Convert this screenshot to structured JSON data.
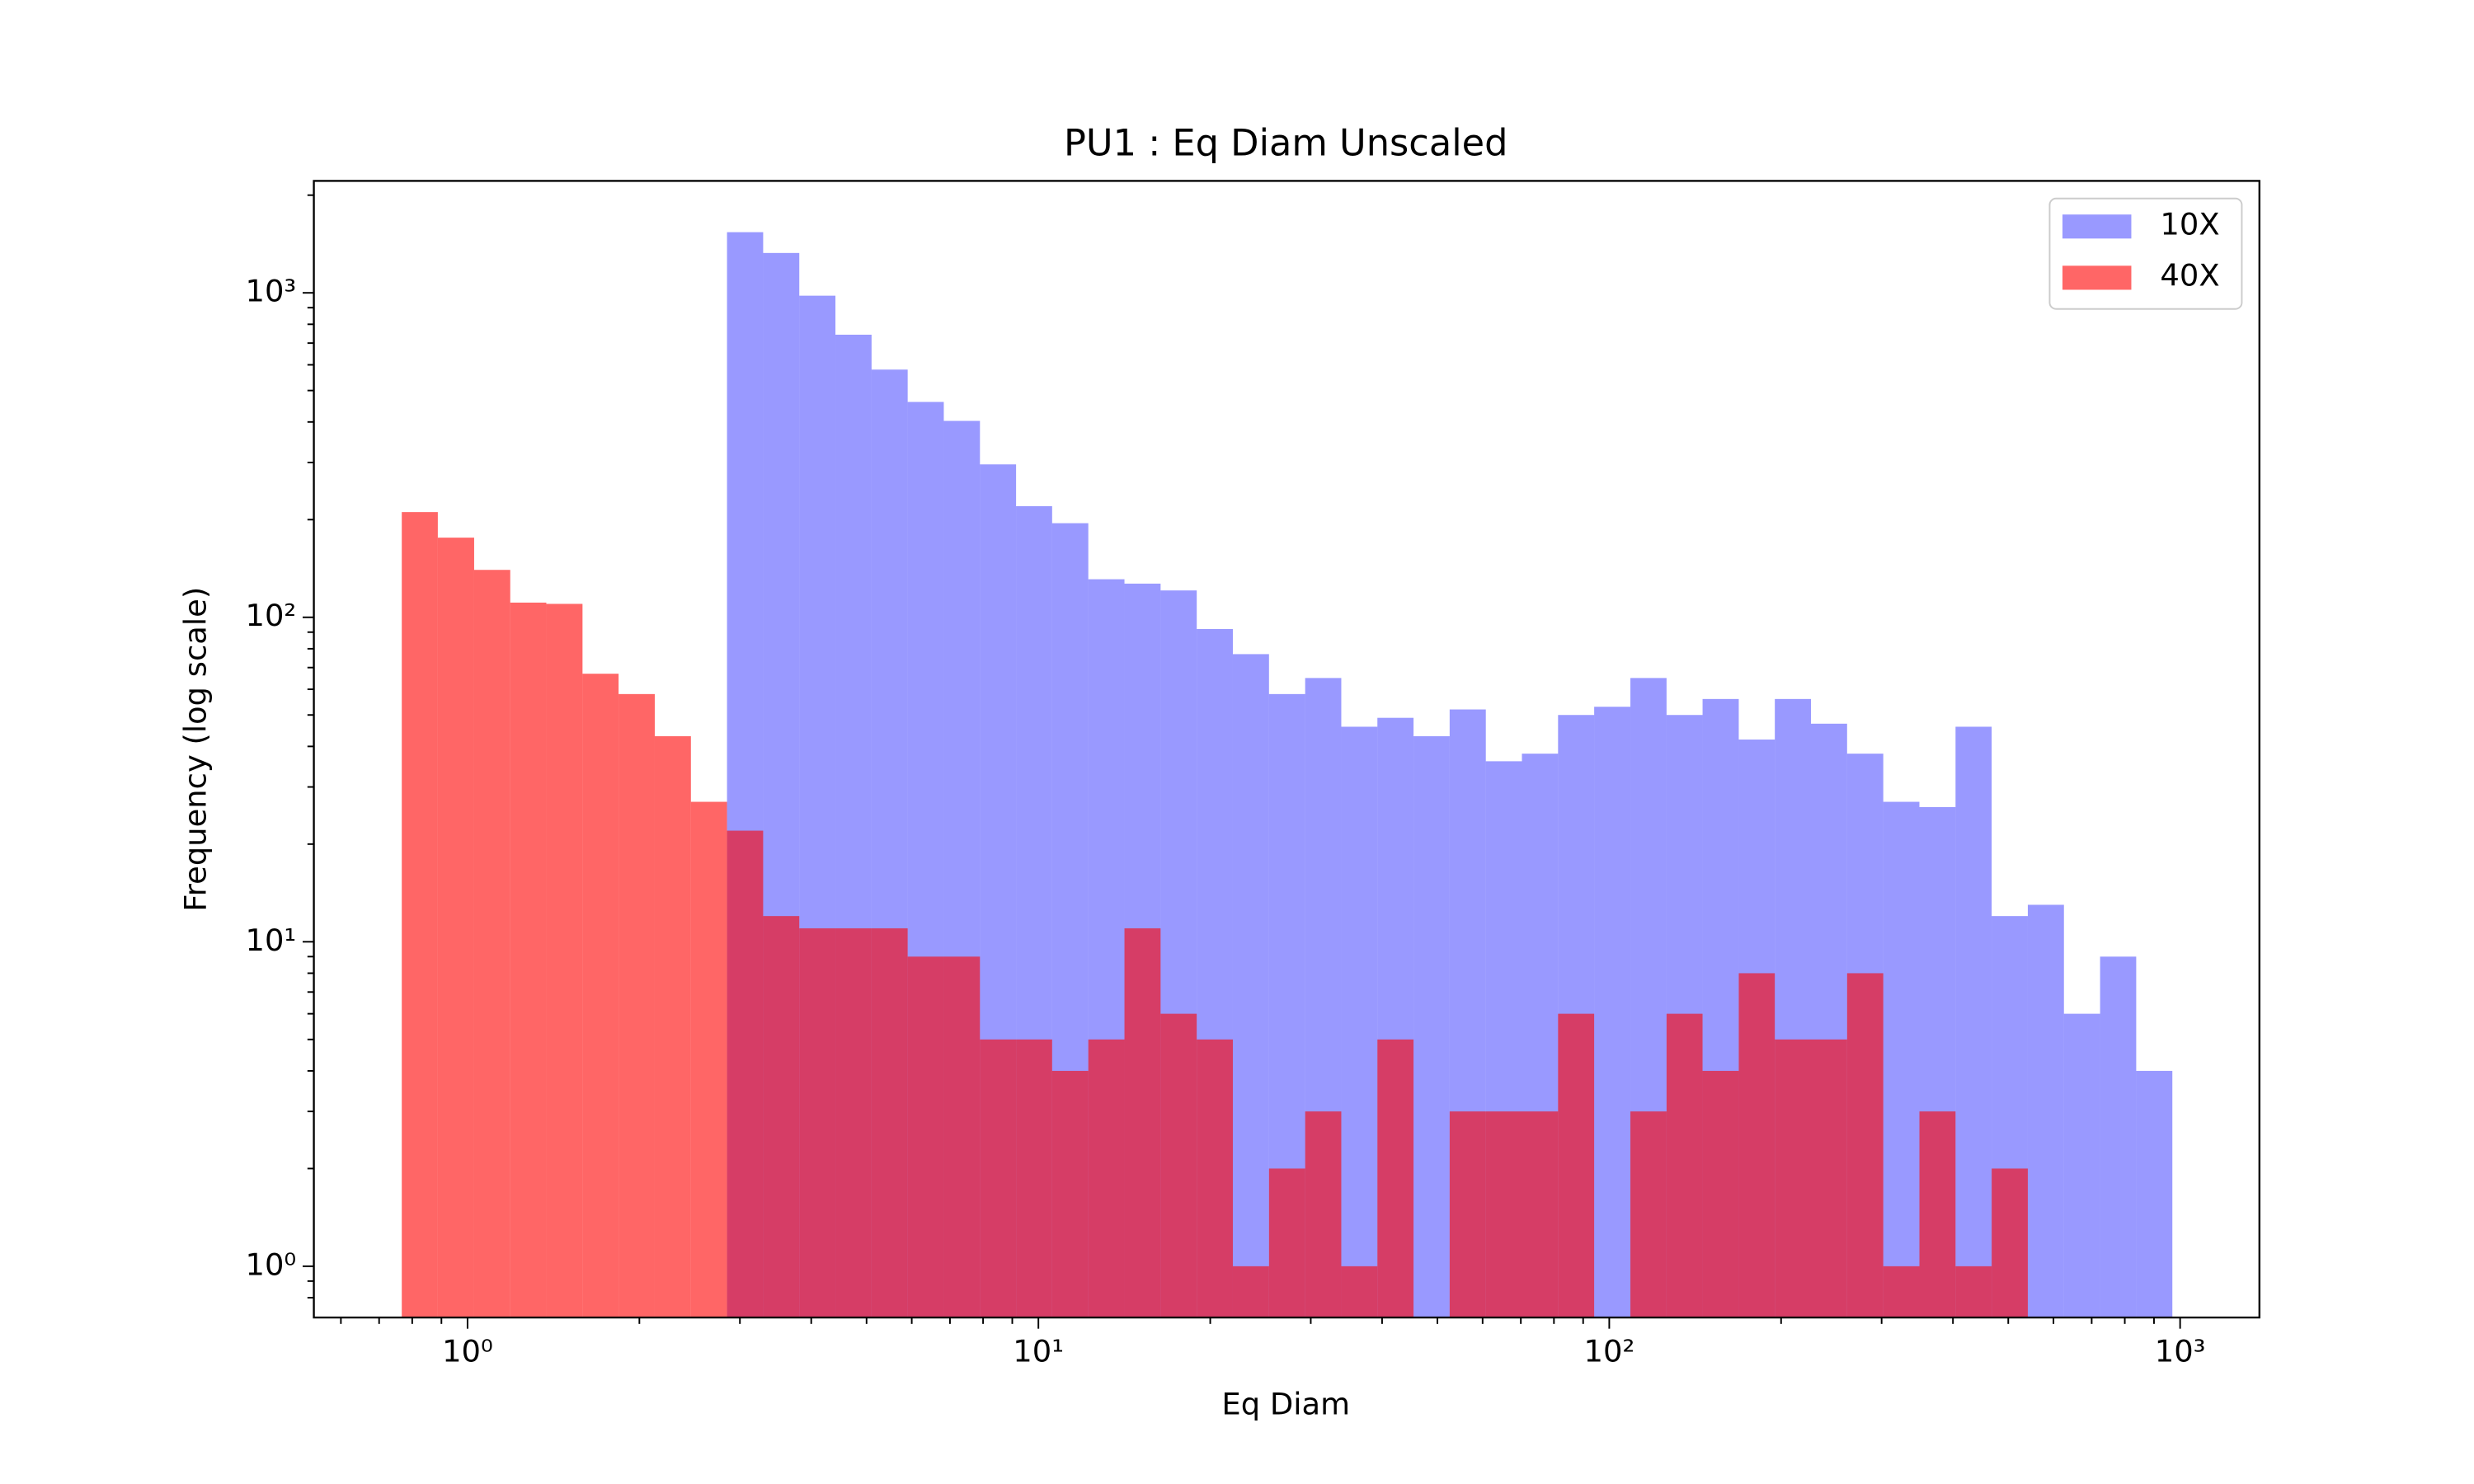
{
  "chart_data": {
    "type": "histogram",
    "title": "PU1 : Eq Diam Unscaled",
    "xlabel": "Eq Diam",
    "ylabel": "Frequency (log scale)",
    "xscale": "log",
    "yscale": "log",
    "legend": "upper right",
    "xlim": [
      0.538,
      1377
    ],
    "ylim": [
      0.695,
      2213
    ],
    "xticks": [
      {
        "value": 1,
        "label": "10⁰"
      },
      {
        "value": 10,
        "label": "10¹"
      },
      {
        "value": 100,
        "label": "10²"
      },
      {
        "value": 1000,
        "label": "10³"
      }
    ],
    "yticks": [
      {
        "value": 1,
        "label": "10⁰"
      },
      {
        "value": 10,
        "label": "10¹"
      },
      {
        "value": 100,
        "label": "10²"
      },
      {
        "value": 1000,
        "label": "10³"
      }
    ],
    "xminorticks": [
      0.6,
      0.7,
      0.8,
      0.9,
      2,
      3,
      4,
      5,
      6,
      7,
      8,
      9,
      20,
      30,
      40,
      50,
      60,
      70,
      80,
      90,
      200,
      300,
      400,
      500,
      600,
      700,
      800,
      900
    ],
    "yminorticks": [
      0.8,
      0.9,
      2,
      3,
      4,
      5,
      6,
      7,
      8,
      9,
      20,
      30,
      40,
      50,
      60,
      70,
      80,
      90,
      200,
      300,
      400,
      500,
      600,
      700,
      800,
      900,
      2000
    ],
    "series": [
      {
        "name": "10X",
        "color": "#0000ff",
        "opacity": 0.4,
        "bins": [
          2.848,
          3.295,
          3.812,
          4.41,
          5.102,
          5.902,
          6.828,
          7.9,
          9.139,
          10.57,
          12.23,
          14.15,
          16.37,
          18.94,
          21.91,
          25.35,
          29.33,
          33.93,
          39.25,
          45.41,
          52.53,
          60.78,
          70.31,
          81.34,
          94.1,
          108.9,
          126.0,
          145.7,
          168.6,
          195.0,
          225.6,
          261.0,
          302.0,
          349.4,
          404.2,
          467.6,
          541.0,
          625.9,
          724.1,
          837.7,
          969.2
        ],
        "values": [
          1538,
          1327,
          980,
          743,
          580,
          461,
          403,
          296,
          220,
          195,
          131,
          127,
          121,
          92,
          77,
          58,
          65,
          46,
          49,
          43,
          52,
          36,
          38,
          50,
          53,
          65,
          50,
          56,
          42,
          56,
          47,
          38,
          27,
          26,
          46,
          12,
          13,
          6,
          9,
          4
        ]
      },
      {
        "name": "40X",
        "color": "#ff0000",
        "opacity": 0.6,
        "bins": [
          0.767,
          0.887,
          1.027,
          1.188,
          1.374,
          1.59,
          1.839,
          2.128,
          2.462,
          2.848,
          3.295,
          3.812,
          4.41,
          5.102,
          5.902,
          6.828,
          7.9,
          9.139,
          10.57,
          12.23,
          14.15,
          16.37,
          18.94,
          21.91,
          25.35,
          29.33,
          33.93,
          39.25,
          45.41,
          52.53,
          60.78,
          70.31,
          81.34,
          94.1,
          108.9,
          126.0,
          145.7,
          168.6,
          195.0,
          225.6,
          261.0,
          302.0,
          349.4,
          404.2,
          467.6,
          541.0
        ],
        "values": [
          211,
          176,
          140,
          111,
          110,
          67,
          58,
          43,
          27,
          22,
          12,
          11,
          11,
          11,
          9,
          9,
          5,
          5,
          4,
          5,
          11,
          6,
          5,
          1,
          2,
          3,
          1,
          5,
          0,
          3,
          3,
          3,
          6,
          0,
          3,
          6,
          4,
          8,
          5,
          5,
          8,
          1,
          3,
          1,
          2
        ]
      }
    ]
  }
}
